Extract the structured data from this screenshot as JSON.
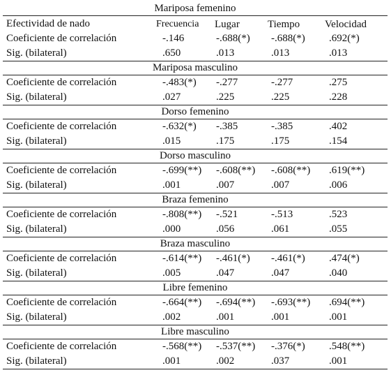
{
  "columns": {
    "row_header": "Efectividad de nado",
    "frecuencia": "Frecuencia",
    "lugar": "Lugar",
    "tiempo": "Tiempo",
    "velocidad": "Velocidad"
  },
  "row_labels": {
    "correlation": "Coeficiente de correlación",
    "significance": "Sig. (bilateral)"
  },
  "sections": [
    {
      "title": "Mariposa femenino",
      "correlation": [
        "-.146",
        "-.688(*)",
        "-.688(*)",
        ".692(*)"
      ],
      "significance": [
        ".650",
        ".013",
        ".013",
        ".013"
      ]
    },
    {
      "title": "Mariposa masculino",
      "correlation": [
        "-.483(*)",
        "-.277",
        "-.277",
        ".275"
      ],
      "significance": [
        ".027",
        ".225",
        ".225",
        ".228"
      ]
    },
    {
      "title": "Dorso femenino",
      "correlation": [
        "-.632(*)",
        "-.385",
        "-.385",
        ".402"
      ],
      "significance": [
        ".015",
        ".175",
        ".175",
        ".154"
      ]
    },
    {
      "title": "Dorso masculino",
      "correlation": [
        "-.699(**)",
        "-.608(**)",
        "-.608(**)",
        ".619(**)"
      ],
      "significance": [
        ".001",
        ".007",
        ".007",
        ".006"
      ]
    },
    {
      "title": "Braza femenino",
      "correlation": [
        "-.808(**)",
        "-.521",
        "-.513",
        ".523"
      ],
      "significance": [
        ".000",
        ".056",
        ".061",
        ".055"
      ]
    },
    {
      "title": "Braza masculino",
      "correlation": [
        "-.614(**)",
        "-.461(*)",
        "-.461(*)",
        ".474(*)"
      ],
      "significance": [
        ".005",
        ".047",
        ".047",
        ".040"
      ]
    },
    {
      "title": "Libre femenino",
      "correlation": [
        "-.664(**)",
        "-.694(**)",
        "-.693(**)",
        ".694(**)"
      ],
      "significance": [
        ".002",
        ".001",
        ".001",
        ".001"
      ]
    },
    {
      "title": "Libre masculino",
      "correlation": [
        "-.568(**)",
        "-.537(**)",
        "-.376(*)",
        ".548(**)"
      ],
      "significance": [
        ".001",
        ".002",
        ".037",
        ".001"
      ]
    }
  ]
}
